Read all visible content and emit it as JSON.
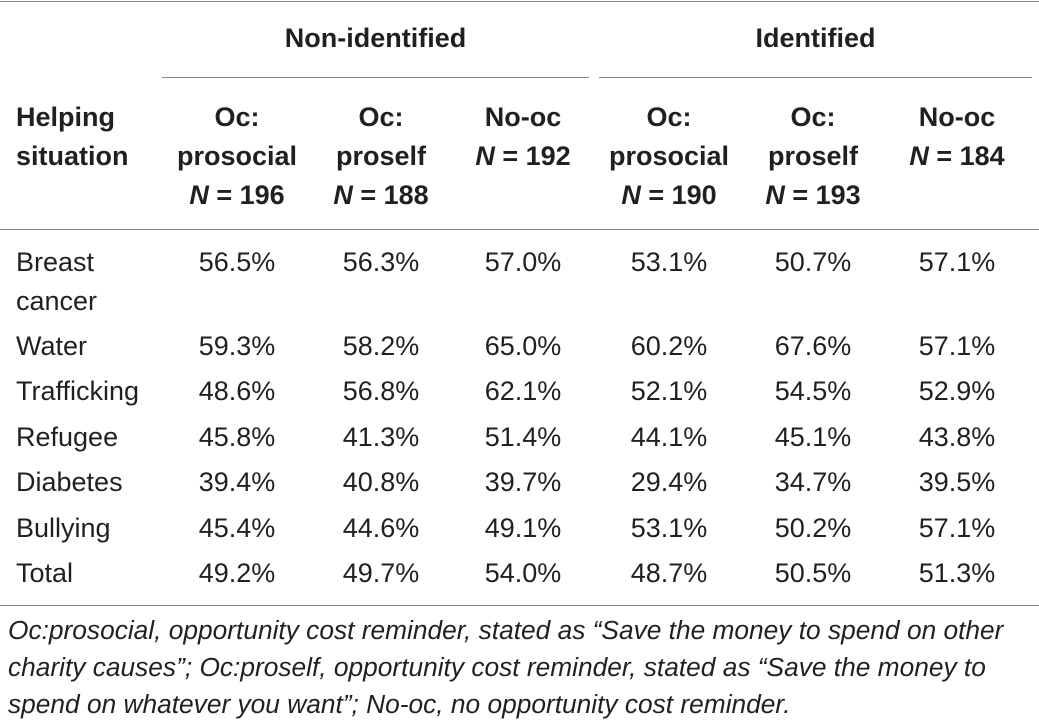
{
  "table": {
    "groups": [
      "Non-identified",
      "Identified"
    ],
    "stub_header": [
      "Helping",
      "situation"
    ],
    "columns": [
      {
        "lines": [
          "Oc:",
          "prosocial"
        ],
        "n_label": "N",
        "n_value": "= 196"
      },
      {
        "lines": [
          "Oc:",
          "proself"
        ],
        "n_label": "N",
        "n_value": "= 188"
      },
      {
        "lines": [
          "No-oc"
        ],
        "n_label": "N",
        "n_value": "= 192"
      },
      {
        "lines": [
          "Oc:",
          "prosocial"
        ],
        "n_label": "N",
        "n_value": "= 190"
      },
      {
        "lines": [
          "Oc:",
          "proself"
        ],
        "n_label": "N",
        "n_value": "= 193"
      },
      {
        "lines": [
          "No-oc"
        ],
        "n_label": "N",
        "n_value": "= 184"
      }
    ],
    "rows": [
      {
        "label_lines": [
          "Breast",
          "cancer"
        ],
        "values": [
          "56.5%",
          "56.3%",
          "57.0%",
          "53.1%",
          "50.7%",
          "57.1%"
        ]
      },
      {
        "label_lines": [
          "Water"
        ],
        "values": [
          "59.3%",
          "58.2%",
          "65.0%",
          "60.2%",
          "67.6%",
          "57.1%"
        ]
      },
      {
        "label_lines": [
          "Trafficking"
        ],
        "values": [
          "48.6%",
          "56.8%",
          "62.1%",
          "52.1%",
          "54.5%",
          "52.9%"
        ]
      },
      {
        "label_lines": [
          "Refugee"
        ],
        "values": [
          "45.8%",
          "41.3%",
          "51.4%",
          "44.1%",
          "45.1%",
          "43.8%"
        ]
      },
      {
        "label_lines": [
          "Diabetes"
        ],
        "values": [
          "39.4%",
          "40.8%",
          "39.7%",
          "29.4%",
          "34.7%",
          "39.5%"
        ]
      },
      {
        "label_lines": [
          "Bullying"
        ],
        "values": [
          "45.4%",
          "44.6%",
          "49.1%",
          "53.1%",
          "50.2%",
          "57.1%"
        ]
      },
      {
        "label_lines": [
          "Total"
        ],
        "values": [
          "49.2%",
          "49.7%",
          "54.0%",
          "48.7%",
          "50.5%",
          "51.3%"
        ]
      }
    ]
  },
  "footnote": "Oc:prosocial, opportunity cost reminder, stated as “Save the money to spend on other charity causes”; Oc:proself, opportunity cost reminder, stated as “Save the money to spend on whatever you want”; No-oc, no opportunity cost reminder."
}
